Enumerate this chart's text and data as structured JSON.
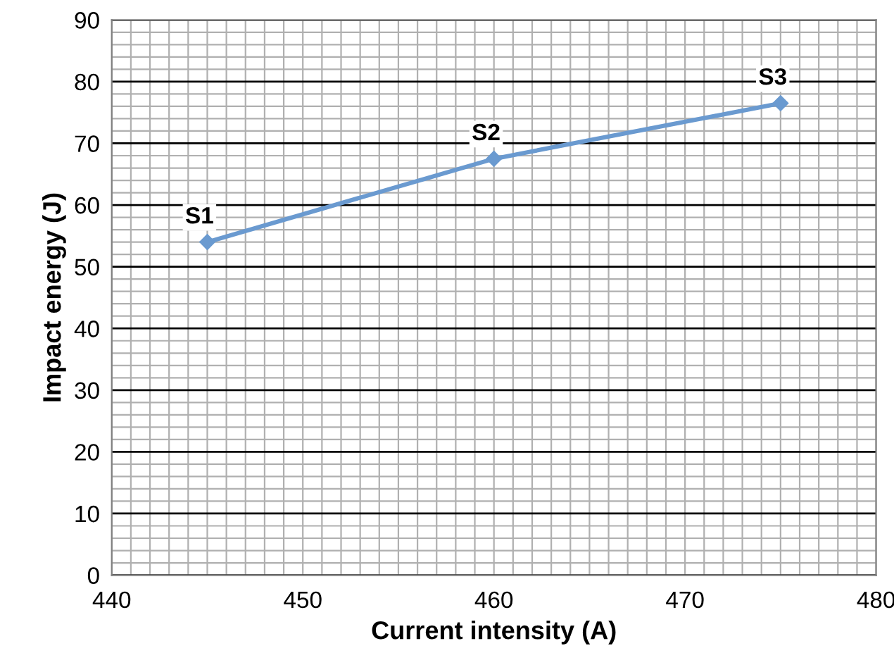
{
  "chart_data": {
    "type": "line",
    "xlabel": "Current intensity (A)",
    "ylabel": "Impact energy (J)",
    "x": [
      445,
      460,
      475
    ],
    "series": [
      {
        "color": "#6a9ad0",
        "values": [
          54,
          67.5,
          76.5
        ]
      }
    ],
    "annotations": [
      {
        "text": "S1",
        "x": 445,
        "y": 54
      },
      {
        "text": "S2",
        "x": 460,
        "y": 67.5
      },
      {
        "text": "S3",
        "x": 475,
        "y": 76.5
      }
    ],
    "xlim": [
      440,
      480
    ],
    "xticks": [
      440,
      450,
      460,
      470,
      480
    ],
    "ylim": [
      0,
      90
    ],
    "yticks": [
      0,
      10,
      20,
      30,
      40,
      50,
      60,
      70,
      80,
      90
    ],
    "grid": true,
    "marker": "diamond",
    "line_style": "solid"
  }
}
